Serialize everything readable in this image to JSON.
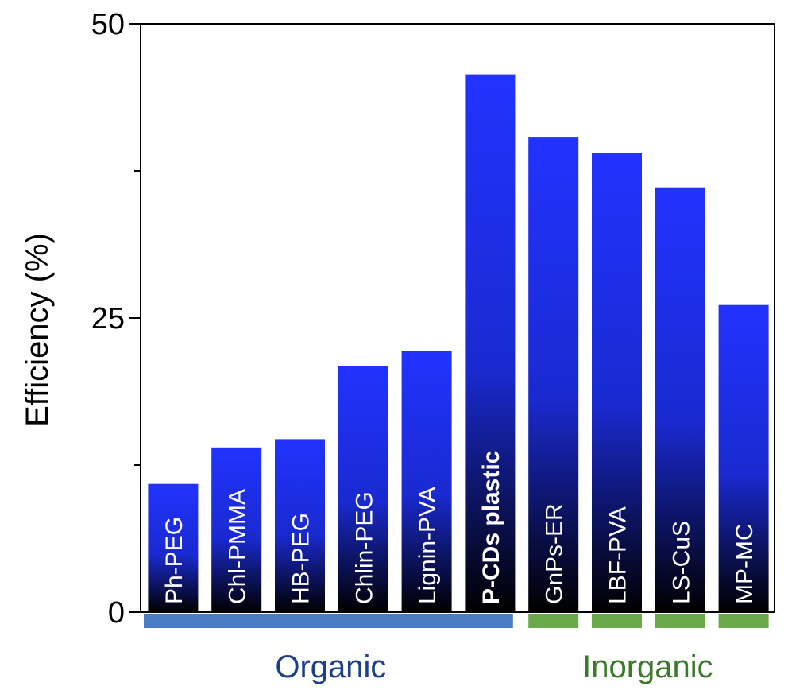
{
  "chart_data": {
    "type": "bar",
    "title": "",
    "xlabel": "",
    "ylabel": "Efficiency (%)",
    "ylim": [
      0,
      50
    ],
    "yticks": [
      0,
      25,
      50
    ],
    "minor_yticks": [
      12.5,
      37.5
    ],
    "grid": false,
    "legend": "none",
    "categories": [
      "Ph-PEG",
      "Chl-PMMA",
      "HB-PEG",
      "Chlin-PEG",
      "Lignin-PVA",
      "P-CDs plastic",
      "GnPs-ER",
      "LBF-PVA",
      "LS-CuS",
      "MP-MC"
    ],
    "values": [
      10.9,
      14.0,
      14.7,
      20.9,
      22.2,
      45.7,
      40.4,
      39.0,
      36.1,
      26.1
    ],
    "highlight_category": "P-CDs plastic",
    "groups": [
      {
        "label": "Organic",
        "from": 0,
        "to": 5,
        "color": "#4a7cc4",
        "text_color": "#1f3f8a"
      },
      {
        "label": "Inorganic",
        "from": 6,
        "to": 9,
        "color": "#6aaa4a",
        "text_color": "#3b7a2a"
      }
    ],
    "colors": {
      "bar_top": "#2233ff",
      "bar_mid": "#1a2ad0",
      "bar_bottom": "#000000",
      "label_default": "#ffffff",
      "label_highlight": "#ff1a1a"
    }
  }
}
